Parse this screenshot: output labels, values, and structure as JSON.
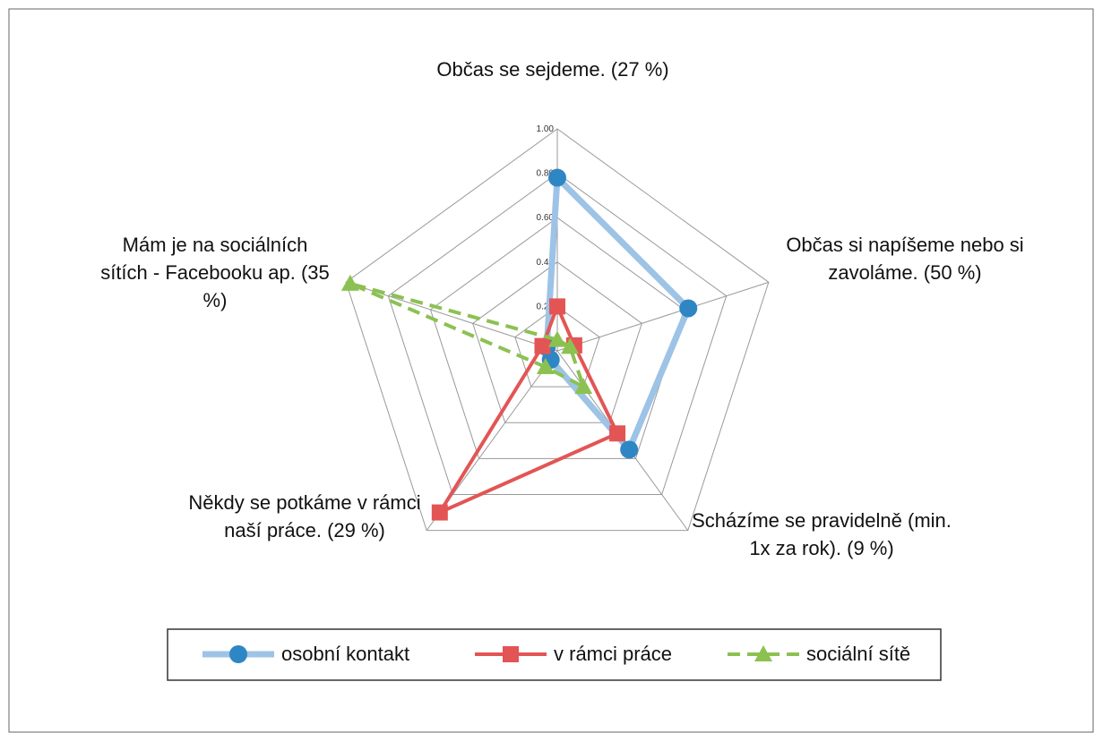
{
  "chart_data": {
    "type": "radar",
    "categories": [
      "Občas se sejdeme. (27 %)",
      "Občas si napíšeme nebo si zavoláme. (50 %)",
      "Scházíme se pravidelně (min. 1x za rok). (9 %)",
      "Někdy se potkáme v rámci naší práce. (29 %)",
      "Mám je na sociálních sítích - Facebooku ap. (35 %)"
    ],
    "series": [
      {
        "name": "osobní kontakt",
        "line_color": "#9dc3e6",
        "marker_color": "#2f86c4",
        "marker": "circle",
        "dash": false,
        "values": [
          0.78,
          0.62,
          0.55,
          0.05,
          0.05
        ]
      },
      {
        "name": "v rámci práce",
        "line_color": "#e35555",
        "marker_color": "#e35555",
        "marker": "square",
        "dash": false,
        "values": [
          0.2,
          0.08,
          0.46,
          0.9,
          0.07
        ]
      },
      {
        "name": "sociální sítě",
        "line_color": "#8cc152",
        "marker_color": "#8cc152",
        "marker": "triangle",
        "dash": true,
        "values": [
          0.05,
          0.06,
          0.2,
          0.09,
          0.98
        ]
      }
    ],
    "ylim": [
      0,
      1
    ],
    "yticks": [
      {
        "value": 0,
        "label": "0.00"
      },
      {
        "value": 0.2,
        "label": "0.20"
      },
      {
        "value": 0.4,
        "label": "0.40"
      },
      {
        "value": 0.6,
        "label": "0.60"
      },
      {
        "value": 0.8,
        "label": "0.80"
      },
      {
        "value": 1,
        "label": "1.00"
      }
    ],
    "grid": true
  }
}
